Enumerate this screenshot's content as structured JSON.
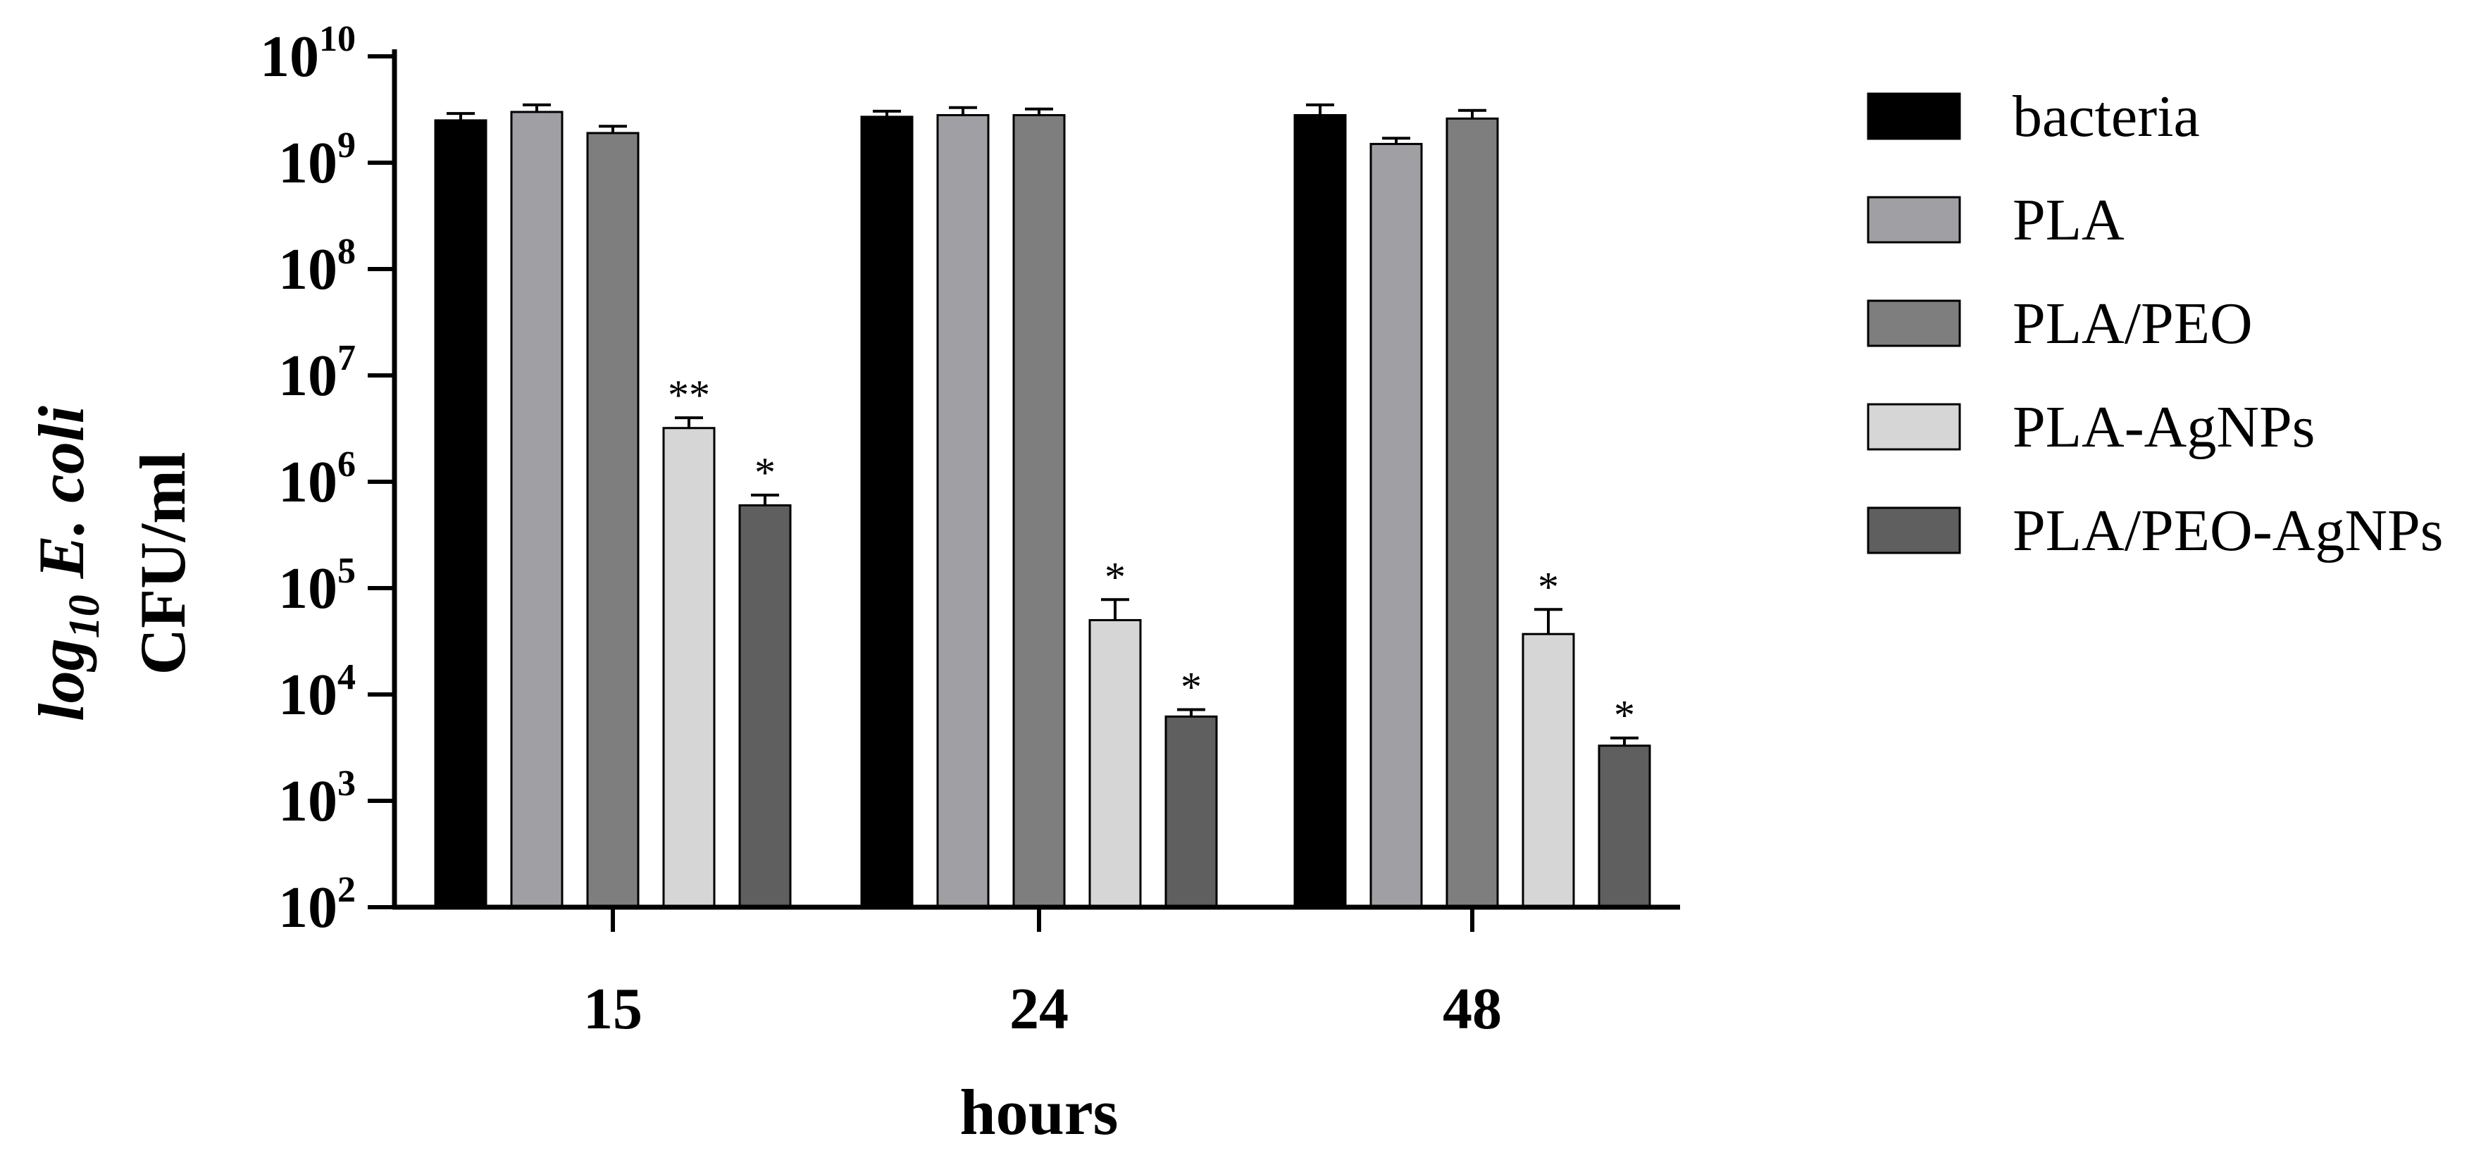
{
  "chart_data": {
    "type": "bar",
    "title": "",
    "xlabel": "hours",
    "ylabel": {
      "prefix": "log",
      "subscript": "10",
      "species": "E. coli",
      "unit": "CFU/ml"
    },
    "yscale": "log",
    "ylim": [
      100,
      10000000000
    ],
    "yticks": [
      {
        "base": "10",
        "exp": "2"
      },
      {
        "base": "10",
        "exp": "3"
      },
      {
        "base": "10",
        "exp": "4"
      },
      {
        "base": "10",
        "exp": "5"
      },
      {
        "base": "10",
        "exp": "6"
      },
      {
        "base": "10",
        "exp": "7"
      },
      {
        "base": "10",
        "exp": "8"
      },
      {
        "base": "10",
        "exp": "9"
      },
      {
        "base": "10",
        "exp": "10"
      }
    ],
    "categories": [
      "15",
      "24",
      "48"
    ],
    "legend_position": "right",
    "series": [
      {
        "name": "bacteria",
        "color": "#000000",
        "values": [
          2500000000,
          2700000000,
          2800000000
        ],
        "errors": [
          400000000,
          350000000,
          700000000
        ],
        "annotations": [
          "",
          "",
          ""
        ]
      },
      {
        "name": "PLA",
        "color": "#a0a0a4",
        "values": [
          3000000000,
          2800000000,
          1500000000
        ],
        "errors": [
          500000000,
          500000000,
          200000000
        ],
        "annotations": [
          "",
          "",
          ""
        ]
      },
      {
        "name": "PLA/PEO",
        "color": "#7e7e7e",
        "values": [
          1900000000,
          2800000000,
          2600000000
        ],
        "errors": [
          300000000,
          400000000,
          500000000
        ],
        "annotations": [
          "",
          "",
          ""
        ]
      },
      {
        "name": "PLA-AgNPs",
        "color": "#d6d6d6",
        "values": [
          3200000,
          50000,
          37000
        ],
        "errors": [
          800000,
          28000,
          26000
        ],
        "annotations": [
          "**",
          "*",
          "*"
        ]
      },
      {
        "name": "PLA/PEO-AgNPs",
        "color": "#5f5f5f",
        "values": [
          600000,
          6200,
          3300
        ],
        "errors": [
          150000,
          1000,
          600
        ],
        "annotations": [
          "*",
          "*",
          "*"
        ]
      }
    ]
  }
}
